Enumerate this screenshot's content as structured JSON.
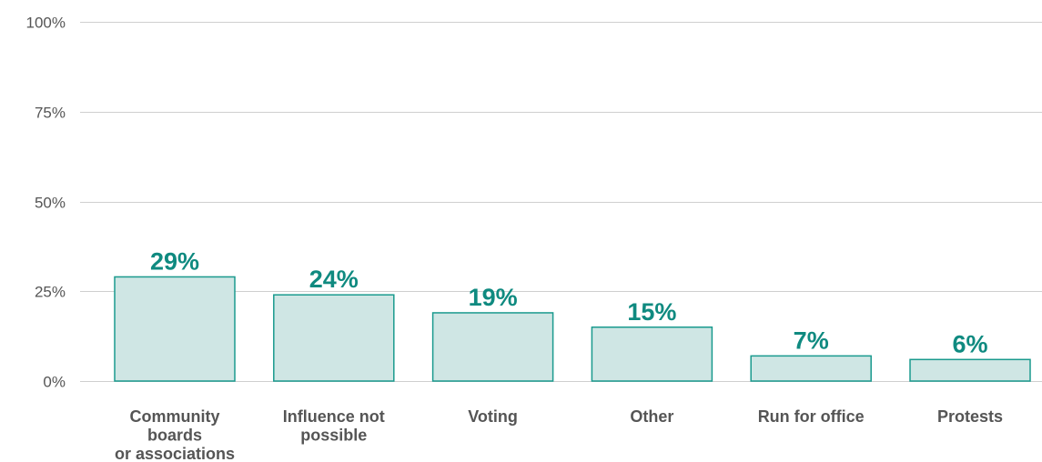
{
  "chart_data": {
    "type": "bar",
    "categories": [
      [
        "Community",
        "boards",
        "or associations"
      ],
      [
        "Influence not",
        "possible"
      ],
      [
        "Voting"
      ],
      [
        "Other"
      ],
      [
        "Run for office"
      ],
      [
        "Protests"
      ]
    ],
    "values": [
      29,
      24,
      19,
      15,
      7,
      6
    ],
    "value_labels": [
      "29%",
      "24%",
      "19%",
      "15%",
      "7%",
      "6%"
    ],
    "ylim": [
      0,
      100
    ],
    "yticks": [
      0,
      25,
      50,
      75,
      100
    ],
    "ytick_labels": [
      "0%",
      "25%",
      "50%",
      "75%",
      "100%"
    ],
    "title": "",
    "xlabel": "",
    "ylabel": "",
    "grid": true,
    "colors": {
      "bar_fill": "#cfe6e4",
      "bar_stroke": "#1a9a8e",
      "value_label": "#0f8a80",
      "axis_text": "#555555",
      "gridline": "#cfcfcf"
    }
  }
}
